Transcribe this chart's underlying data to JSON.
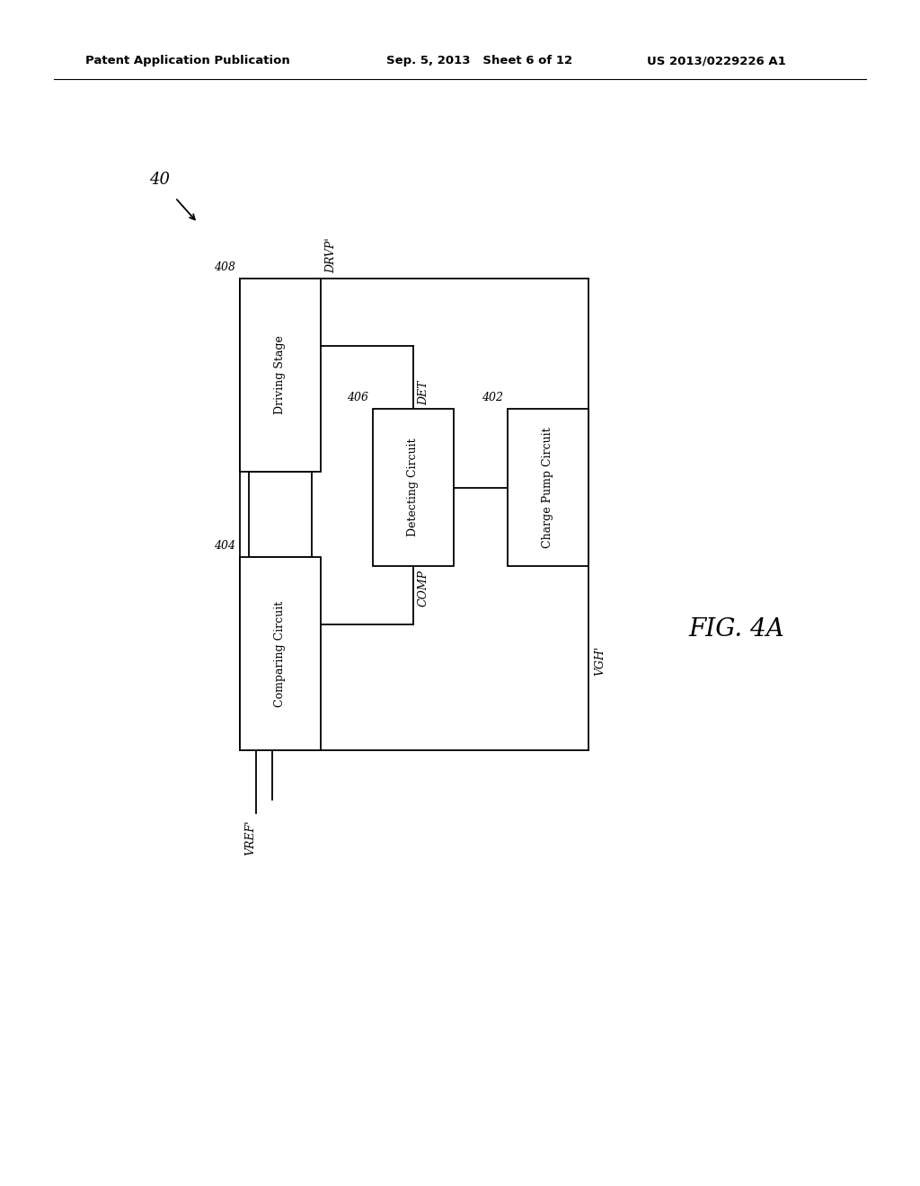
{
  "bg_color": "#ffffff",
  "line_color": "#000000",
  "text_color": "#000000",
  "header_left": "Patent Application Publication",
  "header_mid": "Sep. 5, 2013   Sheet 6 of 12",
  "header_right": "US 2013/0229226 A1",
  "fig_label": "FIG. 4A",
  "diagram_ref": "40",
  "ds_label": "Driving Stage",
  "ds_id": "408",
  "cc_label": "Comparing Circuit",
  "cc_id": "404",
  "dc_label": "Detecting Circuit",
  "dc_id": "406",
  "cp_label": "Charge Pump Circuit",
  "cp_id": "402",
  "port_drvp": "DRVP'",
  "port_det": "DET",
  "port_comp": "COMP",
  "port_vgh": "VGH'",
  "port_vref": "VREF'"
}
